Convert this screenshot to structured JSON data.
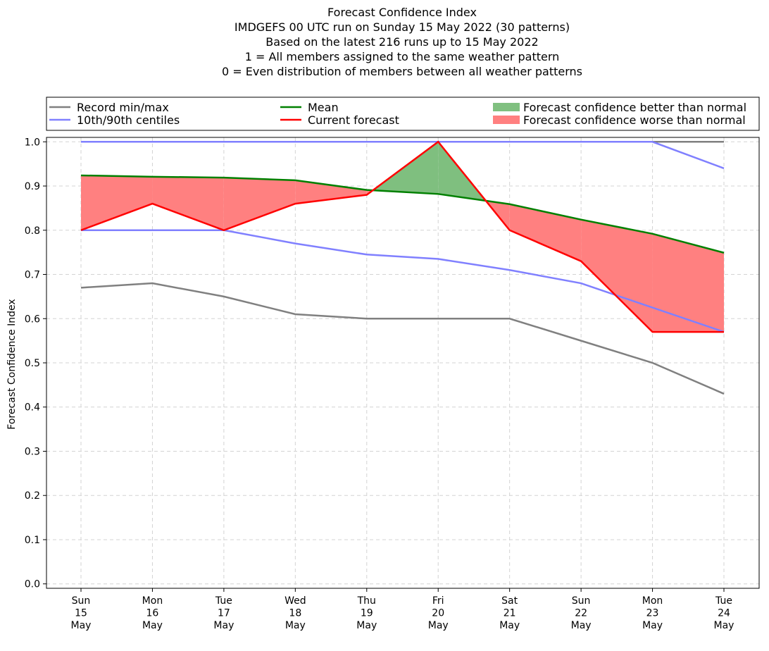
{
  "chart_data": {
    "type": "line",
    "title_lines": [
      "Forecast Confidence Index",
      "IMDGEFS 00 UTC run on Sunday 15 May 2022 (30 patterns)",
      "Based on the latest 216 runs up to 15 May 2022",
      "1 = All members assigned to the same weather pattern",
      "0 = Even distribution of members between all weather patterns"
    ],
    "ylabel": "Forecast Confidence Index",
    "ylim": [
      -0.01,
      1.01
    ],
    "yticks": [
      "0.0",
      "0.1",
      "0.2",
      "0.3",
      "0.4",
      "0.5",
      "0.6",
      "0.7",
      "0.8",
      "0.9",
      "1.0"
    ],
    "categories": [
      [
        "Sun",
        "15",
        "May"
      ],
      [
        "Mon",
        "16",
        "May"
      ],
      [
        "Tue",
        "17",
        "May"
      ],
      [
        "Wed",
        "18",
        "May"
      ],
      [
        "Thu",
        "19",
        "May"
      ],
      [
        "Fri",
        "20",
        "May"
      ],
      [
        "Sat",
        "21",
        "May"
      ],
      [
        "Sun",
        "22",
        "May"
      ],
      [
        "Mon",
        "23",
        "May"
      ],
      [
        "Tue",
        "24",
        "May"
      ]
    ],
    "grid": true,
    "legend_position": "top",
    "series": [
      {
        "name": "Record min",
        "role": "record_min",
        "color": "#808080",
        "values": [
          0.67,
          0.68,
          0.65,
          0.61,
          0.6,
          0.6,
          0.6,
          0.55,
          0.5,
          0.43
        ]
      },
      {
        "name": "Record max",
        "role": "record_max",
        "color": "#808080",
        "values": [
          1.0,
          1.0,
          1.0,
          1.0,
          1.0,
          1.0,
          1.0,
          1.0,
          1.0,
          1.0
        ]
      },
      {
        "name": "10th centile",
        "role": "p10",
        "color": "#8080ff",
        "values": [
          0.8,
          0.8,
          0.8,
          0.77,
          0.745,
          0.735,
          0.71,
          0.68,
          0.625,
          0.57
        ]
      },
      {
        "name": "90th centile",
        "role": "p90",
        "color": "#8080ff",
        "values": [
          1.0,
          1.0,
          1.0,
          1.0,
          1.0,
          1.0,
          1.0,
          1.0,
          1.0,
          0.94
        ]
      },
      {
        "name": "Mean",
        "role": "mean",
        "color": "#008000",
        "values": [
          0.924,
          0.921,
          0.919,
          0.913,
          0.891,
          0.882,
          0.859,
          0.824,
          0.792,
          0.749
        ]
      },
      {
        "name": "Current forecast",
        "role": "current",
        "color": "#ff0000",
        "values": [
          0.8,
          0.86,
          0.8,
          0.86,
          0.88,
          1.0,
          0.8,
          0.73,
          0.57,
          0.57
        ]
      }
    ],
    "legend": [
      {
        "label": "Record min/max",
        "kind": "line",
        "color": "#808080"
      },
      {
        "label": "10th/90th centiles",
        "kind": "line",
        "color": "#8080ff"
      },
      {
        "label": "Mean",
        "kind": "line",
        "color": "#008000"
      },
      {
        "label": "Current forecast",
        "kind": "line",
        "color": "#ff0000"
      },
      {
        "label": "Forecast confidence better than normal",
        "kind": "patch",
        "color": "#80c080"
      },
      {
        "label": "Forecast confidence worse than normal",
        "kind": "patch",
        "color": "#ff8080"
      }
    ],
    "fill_better_color": "#7fbf7f",
    "fill_worse_color": "#ff8080"
  }
}
